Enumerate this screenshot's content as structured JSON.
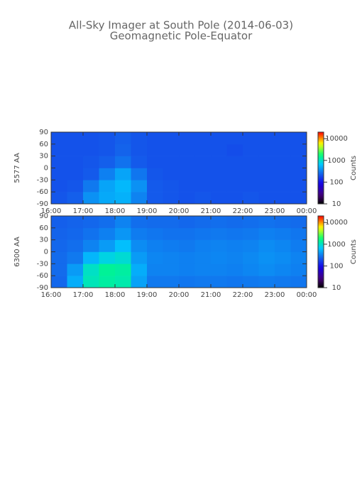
{
  "title": "All-Sky Imager at South Pole (2014-06-03)",
  "subtitle": "Geomagnetic Pole-Equator",
  "chart_data": [
    {
      "type": "heatmap",
      "ylabel": "5577 AA",
      "xlim": [
        16,
        24
      ],
      "xticks": [
        {
          "value": 16,
          "label": "16:00"
        },
        {
          "value": 17,
          "label": "17:00"
        },
        {
          "value": 18,
          "label": "18:00"
        },
        {
          "value": 19,
          "label": "19:00"
        },
        {
          "value": 20,
          "label": "20:00"
        },
        {
          "value": 21,
          "label": "21:00"
        },
        {
          "value": 22,
          "label": "22:00"
        },
        {
          "value": 23,
          "label": "23:00"
        },
        {
          "value": 24,
          "label": "00:00"
        }
      ],
      "ylim": [
        -90,
        90
      ],
      "yticks": [
        -90,
        -60,
        -30,
        0,
        30,
        60,
        90
      ],
      "x_bins": [
        16,
        16.5,
        17,
        17.5,
        18,
        18.5,
        19,
        19.5,
        20,
        20.5,
        21,
        21.5,
        22,
        22.5,
        23,
        23.5,
        24
      ],
      "y_bins": [
        -90,
        -60,
        -30,
        0,
        30,
        60,
        90
      ],
      "z": [
        [
          210,
          230,
          380,
          480,
          520,
          330,
          220,
          210,
          200,
          210,
          200,
          200,
          210,
          200,
          200,
          200
        ],
        [
          200,
          210,
          300,
          460,
          560,
          380,
          220,
          210,
          200,
          200,
          200,
          200,
          200,
          200,
          200,
          200
        ],
        [
          200,
          200,
          220,
          320,
          460,
          290,
          210,
          200,
          200,
          200,
          200,
          200,
          200,
          200,
          200,
          200
        ],
        [
          200,
          200,
          210,
          230,
          280,
          220,
          200,
          200,
          200,
          200,
          200,
          200,
          200,
          200,
          200,
          200
        ],
        [
          200,
          200,
          200,
          210,
          240,
          210,
          200,
          200,
          200,
          200,
          200,
          190,
          200,
          200,
          200,
          200
        ],
        [
          200,
          200,
          200,
          210,
          230,
          210,
          200,
          200,
          200,
          200,
          200,
          200,
          200,
          200,
          200,
          200
        ]
      ],
      "zlim": [
        10,
        20000
      ],
      "zscale": "log",
      "zticks": [
        10,
        100,
        1000,
        10000
      ],
      "zlabel": "Counts"
    },
    {
      "type": "heatmap",
      "ylabel": "6300 AA",
      "xlim": [
        16,
        24
      ],
      "xticks": [
        {
          "value": 16,
          "label": "16:00"
        },
        {
          "value": 17,
          "label": "17:00"
        },
        {
          "value": 18,
          "label": "18:00"
        },
        {
          "value": 19,
          "label": "19:00"
        },
        {
          "value": 20,
          "label": "20:00"
        },
        {
          "value": 21,
          "label": "21:00"
        },
        {
          "value": 22,
          "label": "22:00"
        },
        {
          "value": 23,
          "label": "23:00"
        },
        {
          "value": 24,
          "label": "00:00"
        }
      ],
      "ylim": [
        -90,
        90
      ],
      "yticks": [
        -90,
        -60,
        -30,
        0,
        30,
        60,
        90
      ],
      "x_bins": [
        16,
        16.5,
        17,
        17.5,
        18,
        18.5,
        19,
        19.5,
        20,
        20.5,
        21,
        21.5,
        22,
        22.5,
        23,
        23.5,
        24
      ],
      "y_bins": [
        -90,
        -60,
        -30,
        0,
        30,
        60,
        90
      ],
      "z": [
        [
          250,
          500,
          1100,
          1300,
          1200,
          450,
          300,
          300,
          290,
          300,
          300,
          290,
          300,
          310,
          300,
          290
        ],
        [
          260,
          420,
          1000,
          1400,
          1300,
          500,
          330,
          330,
          320,
          330,
          330,
          320,
          340,
          360,
          340,
          320
        ],
        [
          260,
          300,
          550,
          800,
          900,
          420,
          340,
          330,
          320,
          330,
          340,
          330,
          350,
          380,
          360,
          330
        ],
        [
          250,
          270,
          330,
          420,
          600,
          360,
          320,
          310,
          300,
          320,
          330,
          320,
          330,
          360,
          340,
          310
        ],
        [
          240,
          250,
          280,
          320,
          400,
          310,
          290,
          280,
          280,
          290,
          300,
          290,
          300,
          320,
          310,
          290
        ],
        [
          230,
          240,
          250,
          270,
          330,
          270,
          260,
          260,
          250,
          260,
          270,
          260,
          270,
          280,
          270,
          260
        ]
      ],
      "zlim": [
        10,
        20000
      ],
      "zscale": "log",
      "zticks": [
        10,
        100,
        1000,
        10000
      ],
      "zlabel": "Counts"
    }
  ]
}
